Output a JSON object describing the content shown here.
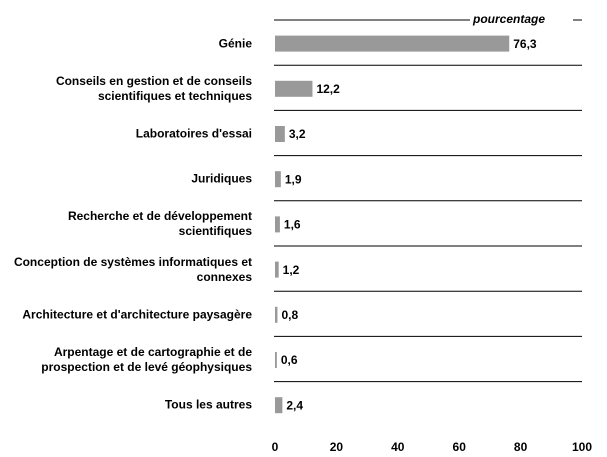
{
  "chart_data": {
    "type": "hbar",
    "x_label": "pourcentage",
    "categories": [
      "Génie",
      "Conseils en gestion et de conseils scientifiques et techniques",
      "Laboratoires d'essai",
      "Juridiques",
      "Recherche et de développement scientifiques",
      "Conception de systèmes informatiques et connexes",
      "Architecture et d'architecture paysagère",
      "Arpentage et de cartographie et de prospection et de levé géophysiques",
      "Tous les autres"
    ],
    "values": [
      76.3,
      12.2,
      3.2,
      1.9,
      1.6,
      1.2,
      0.8,
      0.6,
      2.4
    ],
    "value_labels": [
      "76,3",
      "12,2",
      "3,2",
      "1,9",
      "1,6",
      "1,2",
      "0,8",
      "0,6",
      "2,4"
    ],
    "color": "#999999",
    "xlim": [
      0,
      100
    ],
    "xticks": [
      0,
      20,
      40,
      60,
      80,
      100
    ]
  }
}
